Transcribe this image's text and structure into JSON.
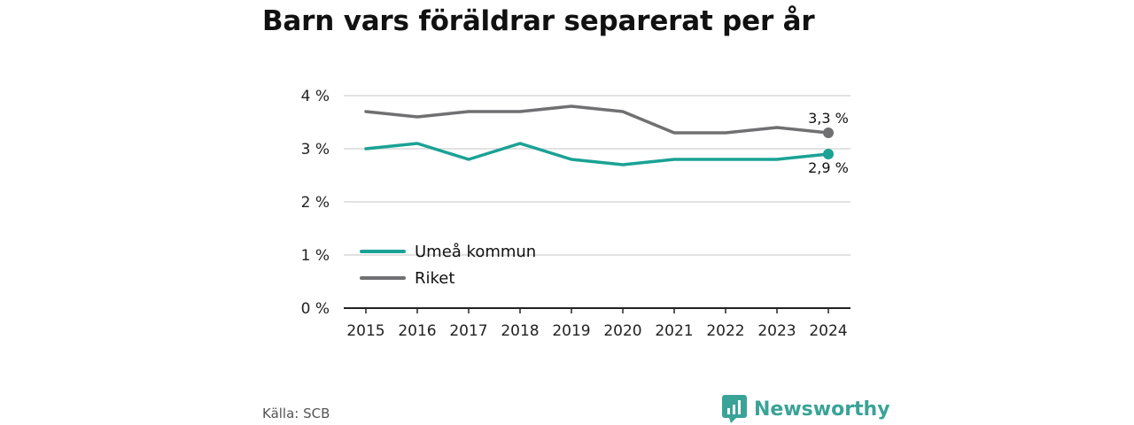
{
  "chart_data": {
    "type": "line",
    "title": "Barn vars föräldrar separerat per år",
    "x": [
      "2015",
      "2016",
      "2017",
      "2018",
      "2019",
      "2020",
      "2021",
      "2022",
      "2023",
      "2024"
    ],
    "ylim": [
      0,
      4
    ],
    "yticks": [
      0,
      1,
      2,
      3,
      4
    ],
    "ytick_labels": [
      "0 %",
      "1 %",
      "2 %",
      "3 %",
      "4 %"
    ],
    "grid": true,
    "legend_position": "lower-left",
    "series": [
      {
        "name": "Umeå kommun",
        "color": "#1aa295",
        "values": [
          3.0,
          3.1,
          2.8,
          3.1,
          2.8,
          2.7,
          2.8,
          2.8,
          2.8,
          2.9
        ],
        "end_label": "2,9 %"
      },
      {
        "name": "Riket",
        "color": "#707072",
        "values": [
          3.7,
          3.6,
          3.7,
          3.7,
          3.8,
          3.7,
          3.3,
          3.3,
          3.4,
          3.3
        ],
        "end_label": "3,3 %"
      }
    ]
  },
  "footer": {
    "source": "Källa: SCB",
    "brand": "Newsworthy",
    "brand_color": "#3aa397",
    "brand_icon": "bar-chart-speech-icon"
  }
}
